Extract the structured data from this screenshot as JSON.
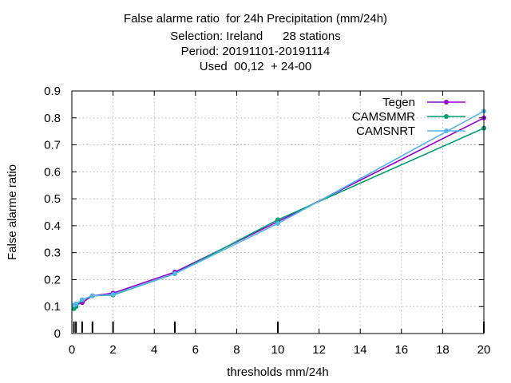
{
  "chart_data": {
    "type": "line",
    "title": [
      "False alarme ratio  for 24h Precipitation (mm/24h)",
      "Selection: Ireland      28 stations",
      "Period: 20191101-20191114",
      "Used  00,12  + 24-00"
    ],
    "xlabel": "thresholds mm/24h",
    "ylabel": "False alarme ratio",
    "xlim": [
      0,
      20
    ],
    "ylim": [
      0,
      0.9
    ],
    "xticks": [
      0,
      2,
      4,
      6,
      8,
      10,
      12,
      14,
      16,
      18,
      20
    ],
    "yticks": [
      0,
      0.1,
      0.2,
      0.3,
      0.4,
      0.5,
      0.6,
      0.7,
      0.8,
      0.9
    ],
    "xtick_labels": [
      "0",
      "2",
      "4",
      "6",
      "8",
      "10",
      "12",
      "14",
      "16",
      "18",
      "20"
    ],
    "ytick_labels": [
      "0",
      "0.1",
      "0.2",
      "0.3",
      "0.4",
      "0.5",
      "0.6",
      "0.7",
      "0.8",
      "0.9"
    ],
    "grid": true,
    "legend_position": "top-right",
    "threshold_marks": [
      0.1,
      0.2,
      0.5,
      1,
      2,
      5,
      10,
      20
    ],
    "x": [
      0.1,
      0.2,
      0.5,
      1,
      2,
      5,
      10,
      20
    ],
    "series": [
      {
        "name": "Tegen",
        "color": "#9400d3",
        "values": [
          0.1,
          0.105,
          0.115,
          0.14,
          0.15,
          0.228,
          0.415,
          0.8
        ]
      },
      {
        "name": "CAMSMMR",
        "color": "#009e73",
        "values": [
          0.092,
          0.1,
          0.125,
          0.14,
          0.143,
          0.222,
          0.422,
          0.762
        ]
      },
      {
        "name": "CAMSNRT",
        "color": "#56b4e9",
        "values": [
          0.105,
          0.11,
          0.125,
          0.14,
          0.145,
          0.222,
          0.408,
          0.825
        ]
      }
    ]
  }
}
